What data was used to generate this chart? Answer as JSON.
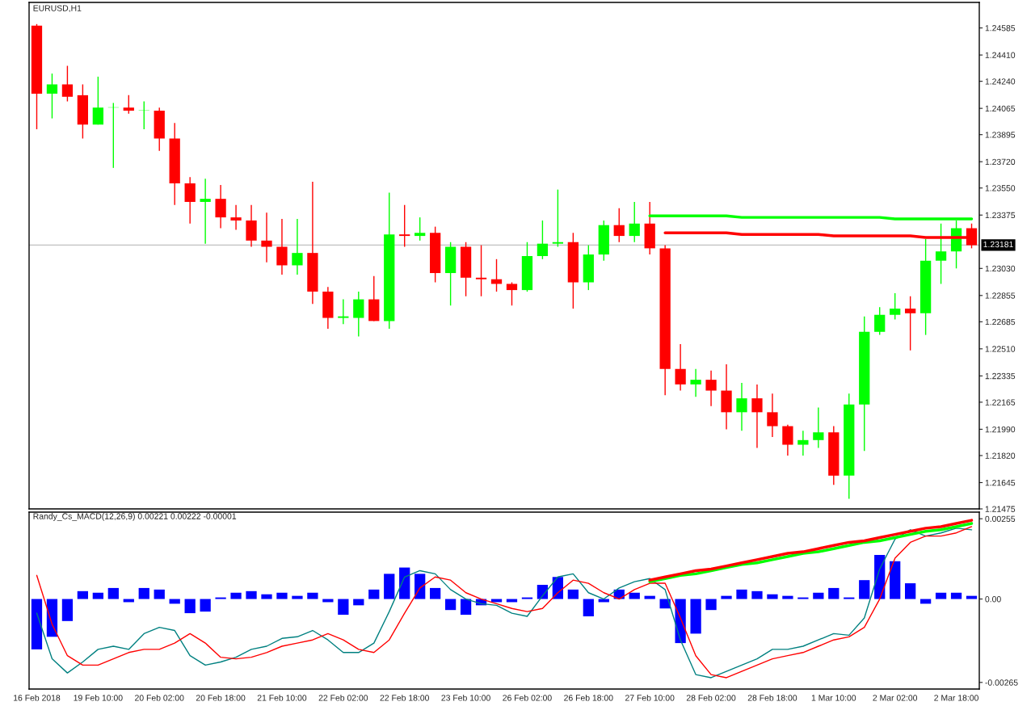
{
  "chart_data": [
    {
      "type": "candlestick",
      "title": "EURUSD,H1",
      "categories": [
        null,
        null,
        null,
        null,
        null,
        null,
        null,
        null,
        null,
        null,
        null,
        null,
        null,
        null,
        null,
        null,
        null,
        null,
        null,
        null,
        null,
        null,
        null,
        null,
        null,
        null,
        null,
        null,
        null,
        null,
        null,
        null,
        null,
        null,
        null,
        null,
        null,
        null,
        null,
        null,
        null,
        null,
        null,
        null,
        null,
        null,
        null,
        null,
        null,
        null,
        null,
        null,
        null,
        null,
        null,
        null,
        null,
        null,
        null,
        null,
        null,
        null
      ],
      "ohlc": [
        [
          1.246,
          1.2461,
          1.2393,
          1.2416
        ],
        [
          1.2416,
          1.2429,
          1.24,
          1.2422
        ],
        [
          1.2422,
          1.2434,
          1.2411,
          1.2414
        ],
        [
          1.2415,
          1.2422,
          1.2387,
          1.2396
        ],
        [
          1.2396,
          1.2427,
          1.2396,
          1.2407
        ],
        [
          1.2407,
          1.241,
          1.2368,
          1.2407
        ],
        [
          1.2407,
          1.2415,
          1.2403,
          1.2405
        ],
        [
          1.2405,
          1.2411,
          1.2393,
          1.2405
        ],
        [
          1.2405,
          1.2407,
          1.2379,
          1.2387
        ],
        [
          1.2387,
          1.2397,
          1.2344,
          1.2358
        ],
        [
          1.2358,
          1.2362,
          1.2332,
          1.2346
        ],
        [
          1.2346,
          1.2361,
          1.2319,
          1.2348
        ],
        [
          1.2348,
          1.2357,
          1.2329,
          1.2336
        ],
        [
          1.2336,
          1.2344,
          1.2328,
          1.2334
        ],
        [
          1.2334,
          1.2344,
          1.2317,
          1.2321
        ],
        [
          1.2321,
          1.2339,
          1.2307,
          1.2317
        ],
        [
          1.2317,
          1.2335,
          1.2299,
          1.2305
        ],
        [
          1.2305,
          1.2335,
          1.2299,
          1.2313
        ],
        [
          1.2313,
          1.2359,
          1.228,
          1.2288
        ],
        [
          1.2288,
          1.2291,
          1.2264,
          1.2271
        ],
        [
          1.2271,
          1.2283,
          1.2267,
          1.2272
        ],
        [
          1.2271,
          1.2288,
          1.2259,
          1.2283
        ],
        [
          1.2283,
          1.2298,
          1.2269,
          1.2269
        ],
        [
          1.2269,
          1.2352,
          1.2264,
          1.2325
        ],
        [
          1.2325,
          1.2344,
          1.2317,
          1.2324
        ],
        [
          1.2324,
          1.2336,
          1.2321,
          1.2326
        ],
        [
          1.2326,
          1.233,
          1.2294,
          1.23
        ],
        [
          1.23,
          1.232,
          1.2279,
          1.2317
        ],
        [
          1.2317,
          1.232,
          1.2285,
          1.2297
        ],
        [
          1.2297,
          1.2318,
          1.2285,
          1.2296
        ],
        [
          1.2296,
          1.2309,
          1.2288,
          1.2293
        ],
        [
          1.2293,
          1.2294,
          1.2279,
          1.2289
        ],
        [
          1.2289,
          1.232,
          1.2288,
          1.2311
        ],
        [
          1.2311,
          1.2334,
          1.2309,
          1.2319
        ],
        [
          1.2319,
          1.2354,
          1.2317,
          1.232
        ],
        [
          1.232,
          1.2326,
          1.2277,
          1.2294
        ],
        [
          1.2294,
          1.2318,
          1.2289,
          1.2312
        ],
        [
          1.2312,
          1.2334,
          1.2308,
          1.2331
        ],
        [
          1.2331,
          1.2342,
          1.232,
          1.2324
        ],
        [
          1.2324,
          1.2346,
          1.232,
          1.2332
        ],
        [
          1.2332,
          1.2346,
          1.2312,
          1.2316
        ],
        [
          1.2316,
          1.2318,
          1.2221,
          1.2238
        ],
        [
          1.2238,
          1.2254,
          1.2224,
          1.2228
        ],
        [
          1.2228,
          1.2238,
          1.222,
          1.2231
        ],
        [
          1.2231,
          1.2237,
          1.2214,
          1.2224
        ],
        [
          1.2224,
          1.2241,
          1.2199,
          1.221
        ],
        [
          1.221,
          1.2229,
          1.2198,
          1.2219
        ],
        [
          1.2219,
          1.2228,
          1.2187,
          1.221
        ],
        [
          1.221,
          1.2222,
          1.2194,
          1.2201
        ],
        [
          1.2201,
          1.2202,
          1.2182,
          1.2189
        ],
        [
          1.2189,
          1.2198,
          1.2182,
          1.2192
        ],
        [
          1.2192,
          1.2213,
          1.2187,
          1.2197
        ],
        [
          1.2197,
          1.2201,
          1.2163,
          1.2169
        ],
        [
          1.2169,
          1.2222,
          1.2154,
          1.2215
        ],
        [
          1.2215,
          1.2272,
          1.2185,
          1.2262
        ],
        [
          1.2262,
          1.2278,
          1.226,
          1.2273
        ],
        [
          1.2273,
          1.2287,
          1.227,
          1.2277
        ],
        [
          1.2277,
          1.2285,
          1.225,
          1.2274
        ],
        [
          1.2274,
          1.2322,
          1.226,
          1.2308
        ],
        [
          1.2308,
          1.2332,
          1.2293,
          1.2314
        ],
        [
          1.2314,
          1.2334,
          1.2303,
          1.2329
        ],
        [
          1.2329,
          1.2332,
          1.2316,
          1.2318
        ]
      ],
      "series": [
        {
          "type": "line",
          "color": "#00ff00",
          "values": [
            null,
            null,
            null,
            null,
            null,
            null,
            null,
            null,
            null,
            null,
            null,
            null,
            null,
            null,
            null,
            null,
            null,
            null,
            null,
            null,
            null,
            null,
            null,
            null,
            null,
            null,
            null,
            null,
            null,
            null,
            null,
            null,
            null,
            null,
            null,
            null,
            null,
            null,
            null,
            null,
            1.2337,
            1.2337,
            1.2337,
            1.2337,
            1.2337,
            1.2337,
            1.2336,
            1.2336,
            1.2336,
            1.2336,
            1.2336,
            1.2336,
            1.2336,
            1.2336,
            1.2336,
            1.2336,
            1.2335,
            1.2335,
            1.2335,
            1.2335,
            1.2335,
            1.2335
          ]
        },
        {
          "type": "line",
          "color": "#ff0000",
          "values": [
            null,
            null,
            null,
            null,
            null,
            null,
            null,
            null,
            null,
            null,
            null,
            null,
            null,
            null,
            null,
            null,
            null,
            null,
            null,
            null,
            null,
            null,
            null,
            null,
            null,
            null,
            null,
            null,
            null,
            null,
            null,
            null,
            null,
            null,
            null,
            null,
            null,
            null,
            null,
            null,
            null,
            1.2326,
            1.2326,
            1.2326,
            1.2326,
            1.2326,
            1.2325,
            1.2325,
            1.2325,
            1.2325,
            1.2325,
            1.2325,
            1.2324,
            1.2324,
            1.2324,
            1.2324,
            1.2324,
            1.2324,
            1.2323,
            1.2323,
            1.2323,
            1.2323
          ]
        }
      ],
      "ylim": [
        1.21475,
        1.2475
      ],
      "yticks": [
        {
          "value": 1.24585,
          "label": "1.24585"
        },
        {
          "value": 1.2441,
          "label": "1.24410"
        },
        {
          "value": 1.2424,
          "label": "1.24240"
        },
        {
          "value": 1.24065,
          "label": "1.24065"
        },
        {
          "value": 1.23895,
          "label": "1.23895"
        },
        {
          "value": 1.2372,
          "label": "1.23720"
        },
        {
          "value": 1.2355,
          "label": "1.23550"
        },
        {
          "value": 1.23375,
          "label": "1.23375"
        },
        {
          "value": 1.2303,
          "label": "1.23030"
        },
        {
          "value": 1.22855,
          "label": "1.22855"
        },
        {
          "value": 1.22685,
          "label": "1.22685"
        },
        {
          "value": 1.2251,
          "label": "1.22510"
        },
        {
          "value": 1.22335,
          "label": "1.22335"
        },
        {
          "value": 1.22165,
          "label": "1.22165"
        },
        {
          "value": 1.2199,
          "label": "1.21990"
        },
        {
          "value": 1.2182,
          "label": "1.21820"
        },
        {
          "value": 1.21645,
          "label": "1.21645"
        },
        {
          "value": 1.21475,
          "label": "1.21475"
        }
      ],
      "ref_lines": [
        {
          "axis": "y",
          "value": 1.23181,
          "label": "1.23181",
          "color": "#c0c0c0"
        }
      ],
      "tick_labels": "y"
    },
    {
      "type": "line",
      "title": "Randy_Cs_MACD(12,26,9) 0.00221 0.00222 -0.00001",
      "categories": [
        "16 Feb 2018",
        null,
        null,
        null,
        "19 Feb 10:00",
        null,
        null,
        null,
        "20 Feb 02:00",
        null,
        null,
        null,
        "20 Feb 18:00",
        null,
        null,
        null,
        "21 Feb 10:00",
        null,
        null,
        null,
        "22 Feb 02:00",
        null,
        null,
        null,
        "22 Feb 18:00",
        null,
        null,
        null,
        "23 Feb 10:00",
        null,
        null,
        null,
        "26 Feb 02:00",
        null,
        null,
        null,
        "26 Feb 18:00",
        null,
        null,
        null,
        "27 Feb 10:00",
        null,
        null,
        null,
        "28 Feb 02:00",
        null,
        null,
        null,
        "28 Feb 18:00",
        null,
        null,
        null,
        "1 Mar 10:00",
        null,
        null,
        null,
        "2 Mar 02:00",
        null,
        null,
        null,
        "2 Mar 18:00",
        null
      ],
      "series": [
        {
          "type": "bar",
          "color": "#0000ff",
          "values": [
            -0.0016,
            -0.0012,
            -0.0007,
            0.00025,
            0.0002,
            0.00035,
            -0.0001,
            0.00035,
            0.0003,
            -0.00015,
            -0.00045,
            -0.0004,
            5e-05,
            0.0002,
            0.00025,
            0.00015,
            0.0002,
            0.0001,
            0.0002,
            -0.0001,
            -0.0005,
            -0.0002,
            0.0003,
            0.0008,
            0.001,
            0.0008,
            0.00035,
            -0.00035,
            -0.0005,
            -0.0002,
            -0.0001,
            -0.0001,
            5e-05,
            0.00045,
            0.0007,
            0.0003,
            -0.00055,
            -0.0001,
            0.0003,
            0.0002,
            0.0001,
            -0.0003,
            -0.0014,
            -0.0011,
            -0.00035,
            0.0001,
            0.0003,
            0.00025,
            0.00015,
            0.0001,
            5e-05,
            0.0002,
            0.00035,
            5e-05,
            0.0006,
            0.0014,
            0.0012,
            0.0005,
            -0.00015,
            0.0002,
            0.0002,
            0.0001
          ]
        },
        {
          "type": "line",
          "color": "#008080",
          "values": [
            -0.00045,
            -0.0019,
            -0.00235,
            -0.002,
            -0.0016,
            -0.0015,
            -0.0016,
            -0.0011,
            -0.0009,
            -0.001,
            -0.0018,
            -0.0021,
            -0.002,
            -0.00185,
            -0.0016,
            -0.0015,
            -0.00125,
            -0.0012,
            -0.001,
            -0.0013,
            -0.0017,
            -0.0017,
            -0.0014,
            -0.0004,
            0.0007,
            0.0009,
            0.0008,
            0.0003,
            0.0,
            -0.00015,
            -0.0002,
            -0.00045,
            -0.00055,
            0.0001,
            0.0007,
            0.0008,
            0.0002,
            0.0,
            0.00035,
            0.00055,
            0.00065,
            0.0003,
            -0.0013,
            -0.0024,
            -0.0025,
            -0.0023,
            -0.0021,
            -0.0019,
            -0.0016,
            -0.0016,
            -0.0015,
            -0.0013,
            -0.0011,
            -0.00115,
            -0.0006,
            0.00095,
            0.0019,
            0.0022,
            0.002,
            0.0021,
            0.00225,
            0.0022
          ]
        },
        {
          "type": "line",
          "color": "#ff0000",
          "values": [
            0.00075,
            -0.0008,
            -0.0018,
            -0.0021,
            -0.0021,
            -0.0019,
            -0.0017,
            -0.0016,
            -0.0016,
            -0.0014,
            -0.0011,
            -0.0014,
            -0.00185,
            -0.0019,
            -0.00185,
            -0.0017,
            -0.0015,
            -0.0014,
            -0.0013,
            -0.0011,
            -0.0013,
            -0.0016,
            -0.0017,
            -0.0013,
            -0.00045,
            0.00035,
            0.0007,
            0.0006,
            0.0002,
            0.0,
            -0.00015,
            -0.0003,
            -0.0004,
            -0.0003,
            0.0002,
            0.0006,
            0.0005,
            0.0002,
            0.0,
            0.0003,
            0.0005,
            0.0005,
            -0.0006,
            -0.0018,
            -0.0024,
            -0.0025,
            -0.0023,
            -0.0021,
            -0.0019,
            -0.0018,
            -0.0017,
            -0.0015,
            -0.0013,
            -0.0012,
            -0.0009,
            0.0,
            0.0013,
            0.0018,
            0.002,
            0.002,
            0.0021,
            0.0023
          ]
        },
        {
          "type": "line",
          "color": "#00ff00",
          "values": [
            null,
            null,
            null,
            null,
            null,
            null,
            null,
            null,
            null,
            null,
            null,
            null,
            null,
            null,
            null,
            null,
            null,
            null,
            null,
            null,
            null,
            null,
            null,
            null,
            null,
            null,
            null,
            null,
            null,
            null,
            null,
            null,
            null,
            null,
            null,
            null,
            null,
            null,
            null,
            null,
            0.00055,
            0.00065,
            0.00075,
            0.0008,
            0.0009,
            0.001,
            0.0011,
            0.00115,
            0.00125,
            0.00135,
            0.00145,
            0.0015,
            0.0016,
            0.0017,
            0.0018,
            0.00185,
            0.00195,
            0.00205,
            0.00215,
            0.0022,
            0.0023,
            0.0024
          ]
        },
        {
          "type": "line",
          "color": "#ff0000",
          "values": [
            null,
            null,
            null,
            null,
            null,
            null,
            null,
            null,
            null,
            null,
            null,
            null,
            null,
            null,
            null,
            null,
            null,
            null,
            null,
            null,
            null,
            null,
            null,
            null,
            null,
            null,
            null,
            null,
            null,
            null,
            null,
            null,
            null,
            null,
            null,
            null,
            null,
            null,
            null,
            null,
            0.0006,
            0.0007,
            0.0008,
            0.0009,
            0.00095,
            0.00105,
            0.00115,
            0.00125,
            0.00135,
            0.00145,
            0.0015,
            0.0016,
            0.0017,
            0.0018,
            0.00185,
            0.00195,
            0.00205,
            0.00215,
            0.00225,
            0.0023,
            0.0024,
            0.0025
          ]
        }
      ],
      "ylim": [
        -0.00286,
        0.00276
      ],
      "yticks": [
        0.00255,
        {
          "value": 0,
          "label": "0.00"
        },
        {
          "value": -0.00265,
          "label": "-0.00265"
        }
      ]
    }
  ]
}
